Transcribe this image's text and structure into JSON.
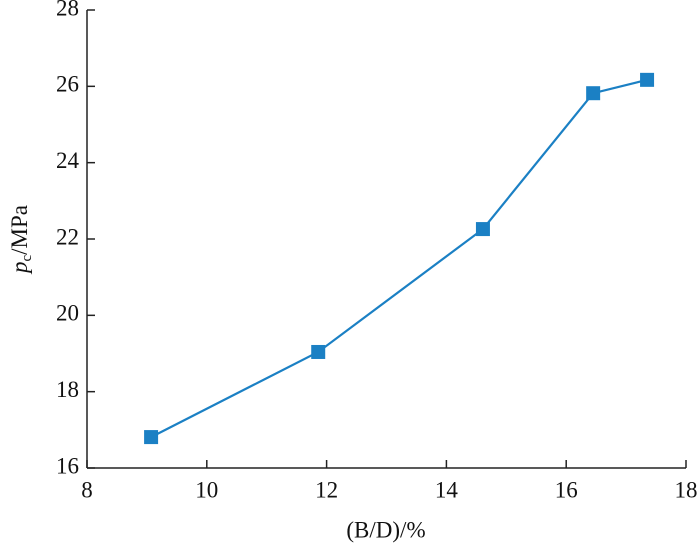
{
  "chart_data": {
    "type": "line",
    "x_label": "(B/D)/%",
    "y_label": [
      "p",
      "c",
      "/MPa"
    ],
    "x": [
      9.07,
      11.86,
      14.61,
      16.45,
      17.35
    ],
    "series": [
      {
        "color": "#1b80c4",
        "values": [
          16.81,
          19.04,
          22.26,
          25.82,
          26.17
        ]
      }
    ],
    "xlim": [
      8,
      18
    ],
    "xticks": [
      8,
      10,
      12,
      14,
      16,
      18
    ],
    "ylim": [
      16,
      28
    ],
    "yticks": [
      16,
      18,
      20,
      22,
      24,
      26,
      28
    ],
    "marker": "square"
  }
}
